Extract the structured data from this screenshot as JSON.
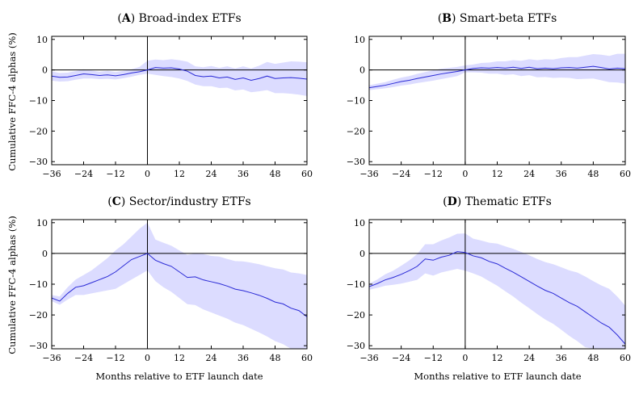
{
  "figure": {
    "ylabel": "Cumulative FFC-4 alphas (%)",
    "xlabel": "Months relative to ETF launch date",
    "colors": {
      "line": "#2a2ad6",
      "band": "#dcdcff",
      "axis": "#000000"
    }
  },
  "chart_data": [
    {
      "type": "line",
      "panel_letter": "A",
      "title_rest": "Broad-index ETFs",
      "xlim": [
        -36,
        60
      ],
      "ylim": [
        -31,
        11
      ],
      "xticks": [
        -36,
        -24,
        -12,
        0,
        12,
        24,
        36,
        48,
        60
      ],
      "yticks": [
        10,
        0,
        -10,
        -20,
        -30
      ],
      "x": [
        -36,
        -33,
        -30,
        -27,
        -24,
        -21,
        -18,
        -15,
        -12,
        -9,
        -6,
        -3,
        0,
        3,
        6,
        9,
        12,
        15,
        18,
        21,
        24,
        27,
        30,
        33,
        36,
        39,
        42,
        45,
        48,
        51,
        54,
        57,
        60
      ],
      "y": [
        -2.0,
        -2.4,
        -2.3,
        -1.8,
        -1.3,
        -1.5,
        -1.8,
        -1.6,
        -1.9,
        -1.5,
        -1.0,
        -0.6,
        0.0,
        0.8,
        0.6,
        0.7,
        0.3,
        -0.4,
        -1.8,
        -2.2,
        -2.0,
        -2.6,
        -2.3,
        -3.1,
        -2.6,
        -3.4,
        -2.8,
        -2.0,
        -2.8,
        -2.6,
        -2.5,
        -2.7,
        -3.0
      ],
      "ci_lower": [
        -3.5,
        -3.8,
        -3.7,
        -3.2,
        -2.8,
        -2.8,
        -3.0,
        -2.9,
        -3.1,
        -2.7,
        -2.2,
        -1.6,
        -1.2,
        -1.6,
        -2.0,
        -2.3,
        -2.8,
        -3.6,
        -4.8,
        -5.3,
        -5.3,
        -5.9,
        -5.8,
        -6.7,
        -6.4,
        -7.3,
        -7.0,
        -6.6,
        -7.6,
        -7.6,
        -7.8,
        -8.1,
        -8.5
      ],
      "ci_upper": [
        -0.5,
        -1.0,
        -0.9,
        -0.4,
        0.2,
        -0.2,
        -0.6,
        -0.3,
        -0.7,
        -0.3,
        0.2,
        1.0,
        3.0,
        3.4,
        3.2,
        3.5,
        3.2,
        2.7,
        1.2,
        0.9,
        1.3,
        0.7,
        1.2,
        0.5,
        1.2,
        0.5,
        1.4,
        2.6,
        2.0,
        2.4,
        2.8,
        2.7,
        2.5
      ]
    },
    {
      "type": "line",
      "panel_letter": "B",
      "title_rest": "Smart-beta ETFs",
      "xlim": [
        -36,
        60
      ],
      "ylim": [
        -31,
        11
      ],
      "xticks": [
        -36,
        -24,
        -12,
        0,
        12,
        24,
        36,
        48,
        60
      ],
      "yticks": [
        10,
        0,
        -10,
        -20,
        -30
      ],
      "x": [
        -36,
        -33,
        -30,
        -27,
        -24,
        -21,
        -18,
        -15,
        -12,
        -9,
        -6,
        -3,
        0,
        3,
        6,
        9,
        12,
        15,
        18,
        21,
        24,
        27,
        30,
        33,
        36,
        39,
        42,
        45,
        48,
        51,
        54,
        57,
        60
      ],
      "y": [
        -5.8,
        -5.4,
        -5.0,
        -4.4,
        -3.8,
        -3.4,
        -2.8,
        -2.3,
        -1.8,
        -1.3,
        -0.9,
        -0.5,
        0.0,
        0.5,
        0.7,
        0.6,
        0.8,
        0.6,
        0.9,
        0.5,
        0.9,
        0.4,
        0.6,
        0.4,
        0.7,
        0.8,
        0.6,
        0.9,
        1.2,
        0.8,
        0.3,
        0.6,
        0.4
      ],
      "ci_lower": [
        -6.6,
        -6.3,
        -6.0,
        -5.6,
        -5.1,
        -4.8,
        -4.3,
        -3.9,
        -3.5,
        -3.0,
        -2.5,
        -2.0,
        -0.8,
        -0.8,
        -0.9,
        -1.2,
        -1.2,
        -1.6,
        -1.4,
        -2.0,
        -1.7,
        -2.4,
        -2.3,
        -2.6,
        -2.5,
        -2.6,
        -3.0,
        -2.9,
        -2.8,
        -3.4,
        -4.0,
        -4.1,
        -4.5
      ],
      "ci_upper": [
        -5.0,
        -4.5,
        -4.0,
        -3.2,
        -2.5,
        -2.0,
        -1.3,
        -0.7,
        -0.1,
        0.4,
        0.7,
        1.0,
        1.5,
        1.8,
        2.3,
        2.4,
        2.8,
        2.8,
        3.2,
        3.0,
        3.5,
        3.2,
        3.5,
        3.4,
        3.9,
        4.2,
        4.2,
        4.7,
        5.2,
        5.0,
        4.6,
        5.3,
        5.3
      ]
    },
    {
      "type": "line",
      "panel_letter": "C",
      "title_rest": "Sector/industry ETFs",
      "xlim": [
        -36,
        60
      ],
      "ylim": [
        -31,
        11
      ],
      "xticks": [
        -36,
        -24,
        -12,
        0,
        12,
        24,
        36,
        48,
        60
      ],
      "yticks": [
        10,
        0,
        -10,
        -20,
        -30
      ],
      "x": [
        -36,
        -33,
        -30,
        -27,
        -24,
        -21,
        -18,
        -15,
        -12,
        -9,
        -6,
        -3,
        0,
        3,
        6,
        9,
        12,
        15,
        18,
        21,
        24,
        27,
        30,
        33,
        36,
        39,
        42,
        45,
        48,
        51,
        54,
        57,
        60
      ],
      "y": [
        -14.5,
        -15.5,
        -13.0,
        -11.0,
        -10.5,
        -9.5,
        -8.5,
        -7.5,
        -6.0,
        -4.0,
        -2.0,
        -1.0,
        0.0,
        -2.2,
        -3.3,
        -4.2,
        -6.0,
        -7.8,
        -7.6,
        -8.6,
        -9.2,
        -9.8,
        -10.6,
        -11.6,
        -12.1,
        -12.8,
        -13.6,
        -14.6,
        -15.8,
        -16.4,
        -17.8,
        -18.6,
        -20.6
      ],
      "ci_lower": [
        -15.5,
        -16.7,
        -15.0,
        -13.5,
        -13.5,
        -13.0,
        -12.5,
        -12.0,
        -11.5,
        -10.0,
        -8.5,
        -7.0,
        -5.5,
        -9.0,
        -11.0,
        -12.5,
        -14.5,
        -16.5,
        -16.8,
        -18.2,
        -19.2,
        -20.2,
        -21.2,
        -22.5,
        -23.3,
        -24.5,
        -25.7,
        -27.0,
        -28.5,
        -29.5,
        -31.0,
        -31.0,
        -31.0
      ],
      "ci_upper": [
        -13.5,
        -14.0,
        -11.0,
        -8.5,
        -7.0,
        -5.5,
        -3.5,
        -1.5,
        1.0,
        3.0,
        5.5,
        8.0,
        10.0,
        4.5,
        3.5,
        2.5,
        1.0,
        -0.5,
        0.0,
        -0.2,
        -0.8,
        -1.0,
        -1.8,
        -2.5,
        -2.6,
        -3.0,
        -3.5,
        -4.2,
        -4.8,
        -5.2,
        -6.2,
        -6.5,
        -7.0
      ]
    },
    {
      "type": "line",
      "panel_letter": "D",
      "title_rest": "Thematic ETFs",
      "xlim": [
        -36,
        60
      ],
      "ylim": [
        -31,
        11
      ],
      "xticks": [
        -36,
        -24,
        -12,
        0,
        12,
        24,
        36,
        48,
        60
      ],
      "yticks": [
        10,
        0,
        -10,
        -20,
        -30
      ],
      "x": [
        -36,
        -33,
        -30,
        -27,
        -24,
        -21,
        -18,
        -15,
        -12,
        -9,
        -6,
        -3,
        0,
        3,
        6,
        9,
        12,
        15,
        18,
        21,
        24,
        27,
        30,
        33,
        36,
        39,
        42,
        45,
        48,
        51,
        54,
        57,
        60
      ],
      "y": [
        -10.8,
        -9.8,
        -8.6,
        -7.8,
        -6.8,
        -5.6,
        -4.2,
        -1.8,
        -2.2,
        -1.2,
        -0.6,
        0.6,
        0.3,
        -0.8,
        -1.4,
        -2.6,
        -3.4,
        -4.8,
        -6.1,
        -7.6,
        -9.1,
        -10.6,
        -12.0,
        -13.0,
        -14.5,
        -16.0,
        -17.2,
        -19.0,
        -20.8,
        -22.6,
        -24.0,
        -26.5,
        -29.5
      ],
      "ci_lower": [
        -11.8,
        -11.2,
        -10.5,
        -10.2,
        -9.8,
        -9.2,
        -8.6,
        -6.5,
        -7.2,
        -6.2,
        -5.6,
        -5.0,
        -5.6,
        -6.5,
        -7.5,
        -9.0,
        -10.5,
        -12.3,
        -14.0,
        -16.0,
        -17.8,
        -19.7,
        -21.5,
        -22.9,
        -24.8,
        -26.8,
        -28.5,
        -30.5,
        -31.0,
        -31.0,
        -31.0,
        -31.0,
        -31.0
      ],
      "ci_upper": [
        -9.8,
        -8.5,
        -6.8,
        -5.6,
        -4.0,
        -2.3,
        -0.2,
        3.0,
        3.0,
        4.2,
        5.2,
        6.4,
        6.5,
        4.8,
        4.2,
        3.5,
        3.2,
        2.3,
        1.5,
        0.5,
        -0.6,
        -1.8,
        -2.8,
        -3.5,
        -4.5,
        -5.5,
        -6.2,
        -7.5,
        -9.0,
        -10.4,
        -11.5,
        -14.0,
        -17.0
      ]
    }
  ]
}
